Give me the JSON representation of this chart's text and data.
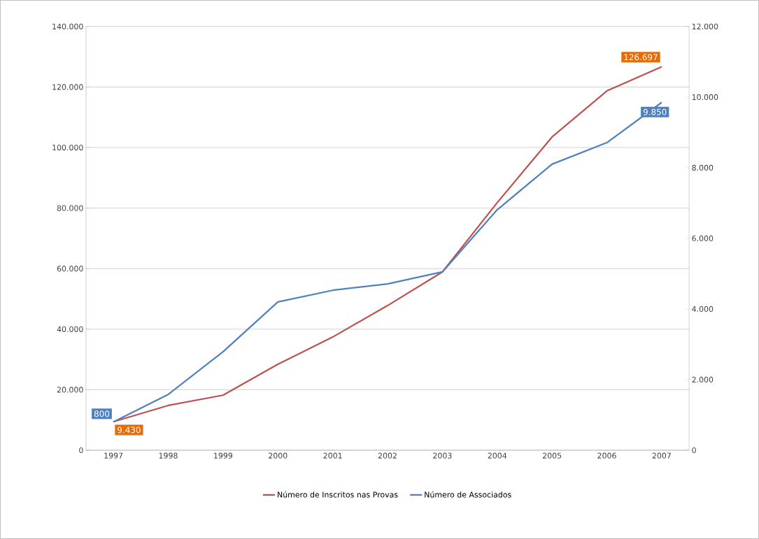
{
  "chart_data": {
    "type": "line",
    "categories": [
      "1997",
      "1998",
      "1999",
      "2000",
      "2001",
      "2002",
      "2003",
      "2004",
      "2005",
      "2006",
      "2007"
    ],
    "series": [
      {
        "name": "Número de Inscritos nas Provas",
        "color": "#c0504d",
        "values": [
          9430,
          14800,
          18200,
          28400,
          37400,
          47800,
          58900,
          81800,
          103500,
          118700,
          126697
        ],
        "value_labels": [
          "9.430",
          null,
          null,
          null,
          null,
          null,
          null,
          null,
          null,
          null,
          "126.697"
        ]
      },
      {
        "name": "Número de Associados",
        "color": "#4f81bd",
        "axis": "y2",
        "values": [
          800,
          1580,
          2790,
          4200,
          4530,
          4710,
          5050,
          6810,
          8100,
          8710,
          9850
        ],
        "value_labels": [
          "800",
          null,
          null,
          null,
          null,
          null,
          null,
          null,
          null,
          null,
          "9.850"
        ]
      }
    ],
    "ylim": [
      0,
      140000
    ],
    "yticks": [
      0,
      {
        "value": 20000,
        "label": "20.000"
      },
      {
        "value": 40000,
        "label": "40.000"
      },
      {
        "value": 60000,
        "label": "60.000"
      },
      {
        "value": 80000,
        "label": "80.000"
      },
      {
        "value": 100000,
        "label": "100.000"
      },
      {
        "value": 120000,
        "label": "120.000"
      },
      {
        "value": 140000,
        "label": "140.000"
      }
    ],
    "y2lim": [
      0,
      12000
    ],
    "y2ticks": [
      0,
      {
        "value": 2000,
        "label": "2.000"
      },
      {
        "value": 4000,
        "label": "4.000"
      },
      {
        "value": 6000,
        "label": "6.000"
      },
      {
        "value": 8000,
        "label": "8.000"
      },
      {
        "value": 10000,
        "label": "10.000"
      },
      {
        "value": 12000,
        "label": "12.000"
      }
    ],
    "grid": "y",
    "legend": "bottom",
    "marker": "none",
    "line_style": "solid"
  }
}
